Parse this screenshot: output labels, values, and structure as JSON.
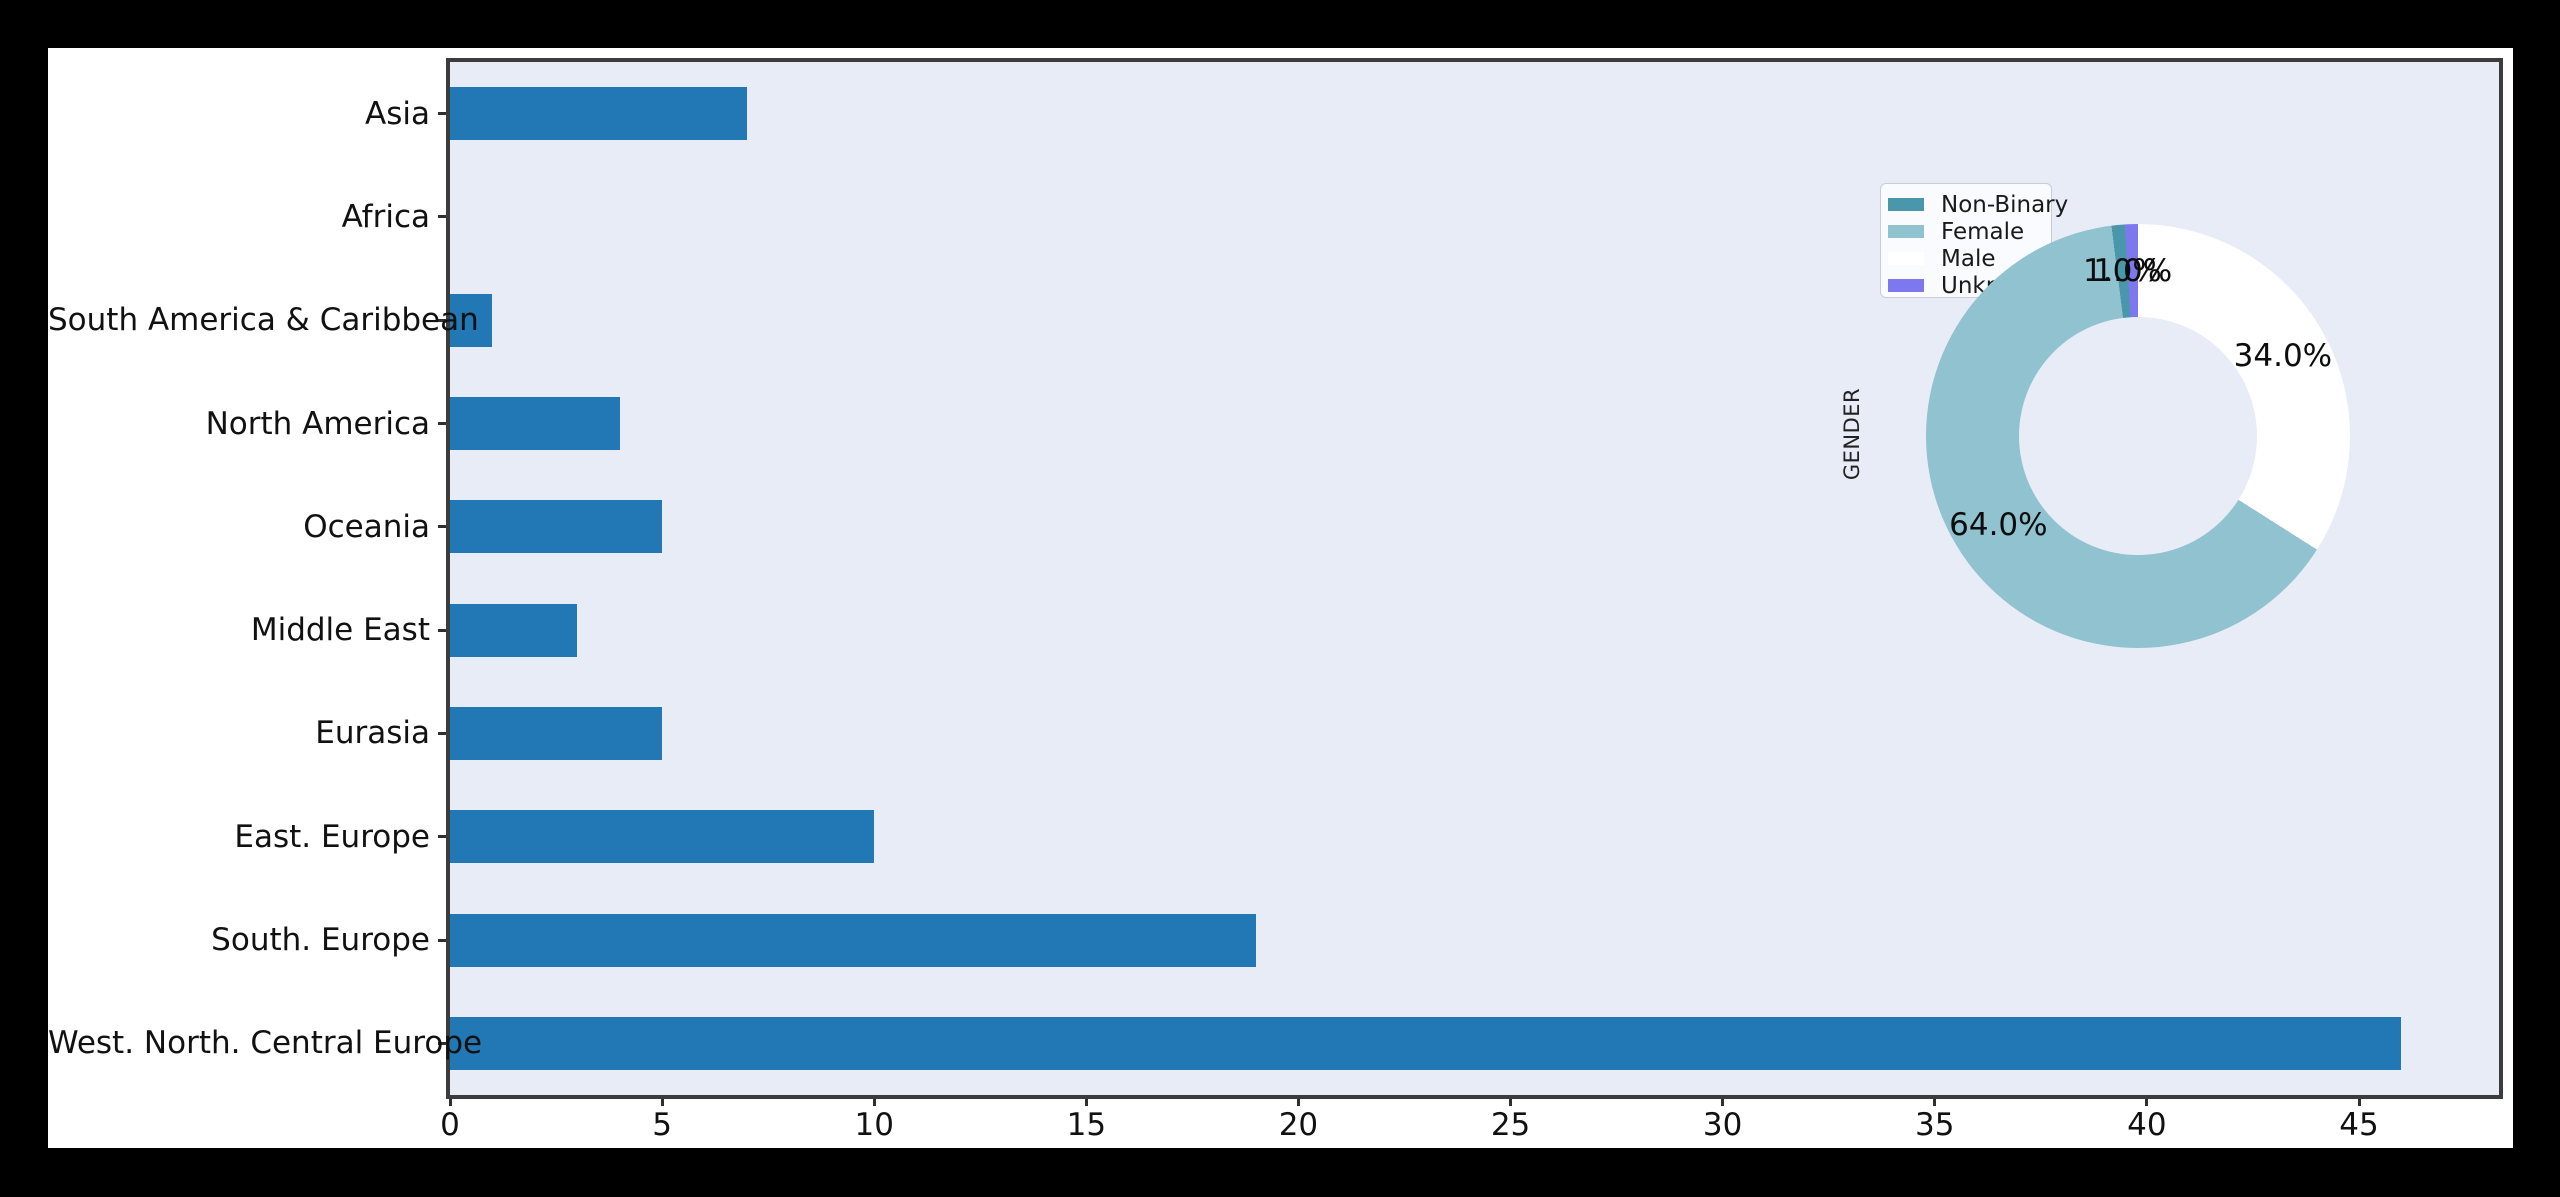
{
  "figure": {
    "background": "#ffffff",
    "outer_background": "#000000"
  },
  "chart_data": [
    {
      "type": "bar",
      "orientation": "horizontal",
      "title": "",
      "xlabel": "",
      "ylabel": "",
      "categories": [
        "Asia",
        "Africa",
        "South America & Caribbean",
        "North America",
        "Oceania",
        "Middle East",
        "Eurasia",
        "East. Europe",
        "South. Europe",
        "West. North. Central Europe"
      ],
      "values": [
        7,
        0,
        1,
        4,
        5,
        3,
        5,
        10,
        19,
        46
      ],
      "x_ticks": [
        0,
        5,
        10,
        15,
        20,
        25,
        30,
        35,
        40,
        45
      ],
      "x_lim": [
        0,
        48.3
      ],
      "bar_color": "#2277b5",
      "axes_background": "#e8ecf7",
      "spine_color": "#3c3c3c",
      "grid": "off",
      "bar_rel_height": 0.51
    },
    {
      "type": "pie",
      "donut": true,
      "ylabel": "GENDER",
      "direction": "clockwise",
      "start_angle": "top",
      "pct_distance": 0.78,
      "slices": [
        {
          "label": "Male",
          "pct": 34.0,
          "pct_label": "34.0%",
          "color": "#ffffff"
        },
        {
          "label": "Female",
          "pct": 64.0,
          "pct_label": "64.0%",
          "color": "#90c2d0"
        },
        {
          "label": "Non-Binary",
          "pct": 1.0,
          "pct_label": "1.0%",
          "color": "#4a96ab"
        },
        {
          "label": "Unknown",
          "pct": 1.0,
          "pct_label": "1.0%",
          "color": "#7d78ee"
        }
      ],
      "legend": {
        "position": "upper-left-of-pie",
        "items": [
          {
            "label": "Non-Binary",
            "color": "#4a96ab"
          },
          {
            "label": "Female",
            "color": "#90c2d0"
          },
          {
            "label": "Male",
            "color": "#ffffff"
          },
          {
            "label": "Unknown",
            "color": "#7d78ee"
          }
        ]
      }
    }
  ]
}
